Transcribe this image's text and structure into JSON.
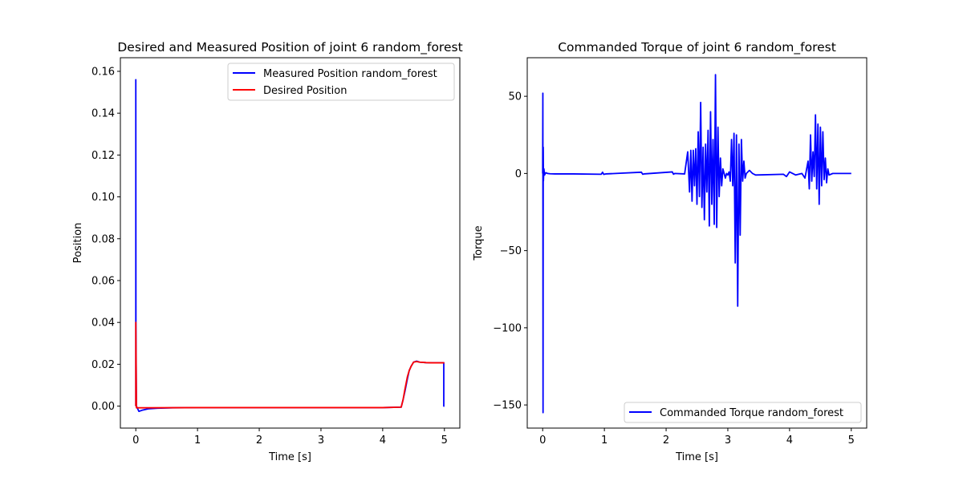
{
  "chart_data": [
    {
      "type": "line",
      "title": "Desired and Measured Position of joint 6 random_forest",
      "xlabel": "Time [s]",
      "ylabel": "Position",
      "xlim": [
        -0.25,
        5.25
      ],
      "ylim": [
        -0.0105,
        0.1665
      ],
      "xticks": [
        0,
        1,
        2,
        3,
        4,
        5
      ],
      "yticks": [
        0.0,
        0.02,
        0.04,
        0.06,
        0.08,
        0.1,
        0.12,
        0.14,
        0.16
      ],
      "ytick_labels": [
        "0.00",
        "0.02",
        "0.04",
        "0.06",
        "0.08",
        "0.10",
        "0.12",
        "0.14",
        "0.16"
      ],
      "legend_position": "upper right",
      "grid": false,
      "series": [
        {
          "name": "Measured Position random_forest",
          "color": "#0000ff",
          "x": [
            0,
            0,
            0.002,
            0.01,
            0.05,
            0.1,
            0.2,
            0.35,
            0.6,
            1.0,
            2.0,
            3.0,
            4.0,
            4.3,
            4.33,
            4.36,
            4.4,
            4.43,
            4.46,
            4.5,
            4.55,
            4.6,
            4.7,
            4.8,
            4.9,
            4.99,
            4.99,
            4.995,
            5.0
          ],
          "y": [
            0.0,
            0.156,
            0.04,
            0.0,
            -0.0025,
            -0.002,
            -0.0013,
            -0.001,
            -0.0008,
            -0.0007,
            -0.0007,
            -0.0007,
            -0.0007,
            -0.0005,
            0.003,
            0.007,
            0.013,
            0.017,
            0.019,
            0.021,
            0.0215,
            0.021,
            0.0208,
            0.0207,
            0.0207,
            0.0207,
            0.0,
            0.0,
            0.0
          ]
        },
        {
          "name": "Desired Position",
          "color": "#ff0000",
          "x": [
            0,
            0,
            0.01,
            0.05,
            0.2,
            1.0,
            2.0,
            3.0,
            4.0,
            4.3,
            4.33,
            4.36,
            4.4,
            4.43,
            4.46,
            4.5,
            4.55,
            4.6,
            4.7,
            4.8,
            4.9,
            5.0
          ],
          "y": [
            0.0,
            0.04,
            -0.0008,
            -0.0008,
            -0.0008,
            -0.0007,
            -0.0007,
            -0.0007,
            -0.0007,
            -0.0005,
            0.003,
            0.008,
            0.014,
            0.017,
            0.019,
            0.021,
            0.0213,
            0.021,
            0.0208,
            0.0207,
            0.0207,
            0.0207
          ]
        }
      ]
    },
    {
      "type": "line",
      "title": "Commanded Torque of joint 6 random_forest",
      "xlabel": "Time [s]",
      "ylabel": "Torque",
      "xlim": [
        -0.25,
        5.25
      ],
      "ylim": [
        -165,
        75
      ],
      "xticks": [
        0,
        1,
        2,
        3,
        4,
        5
      ],
      "yticks": [
        -150,
        -100,
        -50,
        0,
        50
      ],
      "ytick_labels": [
        "−150",
        "−100",
        "−50",
        "0",
        "50"
      ],
      "legend_position": "lower right",
      "grid": false,
      "series": [
        {
          "name": "Commanded Torque random_forest",
          "color": "#0000ff",
          "x": [
            0,
            0.003,
            0.006,
            0.009,
            0.012,
            0.02,
            0.03,
            0.05,
            0.08,
            0.12,
            0.2,
            0.5,
            0.95,
            0.97,
            0.99,
            1.02,
            1.6,
            1.62,
            1.64,
            2.1,
            2.12,
            2.14,
            2.3,
            2.35,
            2.38,
            2.4,
            2.42,
            2.44,
            2.46,
            2.48,
            2.5,
            2.52,
            2.54,
            2.56,
            2.58,
            2.6,
            2.62,
            2.64,
            2.66,
            2.68,
            2.7,
            2.72,
            2.74,
            2.76,
            2.78,
            2.8,
            2.82,
            2.84,
            2.86,
            2.88,
            2.9,
            2.92,
            2.94,
            2.96,
            2.98,
            3.0,
            3.02,
            3.04,
            3.06,
            3.08,
            3.1,
            3.12,
            3.14,
            3.16,
            3.18,
            3.2,
            3.22,
            3.24,
            3.26,
            3.28,
            3.3,
            3.35,
            3.4,
            3.45,
            3.9,
            3.95,
            4.0,
            4.1,
            4.2,
            4.25,
            4.3,
            4.32,
            4.34,
            4.36,
            4.38,
            4.4,
            4.42,
            4.44,
            4.46,
            4.48,
            4.5,
            4.52,
            4.54,
            4.56,
            4.58,
            4.6,
            4.62,
            4.64,
            4.7,
            4.8,
            5.0
          ],
          "y": [
            0,
            52,
            -155,
            17,
            -5,
            3,
            -1,
            0.5,
            0,
            -0.2,
            -0.3,
            -0.3,
            -0.5,
            0.8,
            -0.6,
            -0.3,
            0.8,
            -0.5,
            -0.3,
            1,
            -0.5,
            0,
            -0.3,
            14,
            -12,
            15,
            -18,
            15,
            -8,
            16,
            -20,
            27,
            -15,
            46,
            -22,
            17,
            -30,
            19,
            -12,
            28,
            -34,
            40,
            -20,
            22,
            -33,
            64,
            -35,
            30,
            -15,
            10,
            -8,
            3,
            0,
            -3,
            0,
            -1,
            1,
            -5,
            22,
            -8,
            26,
            -58,
            25,
            -86,
            19,
            -40,
            22,
            -5,
            8,
            -3,
            0,
            2,
            0,
            -1,
            -0.5,
            -2,
            1,
            -1,
            0,
            -3,
            8,
            -10,
            25,
            -5,
            14,
            -2,
            38,
            -10,
            32,
            -20,
            30,
            -8,
            27,
            -4,
            10,
            -6,
            3,
            -1,
            0,
            0,
            0
          ]
        }
      ]
    }
  ]
}
